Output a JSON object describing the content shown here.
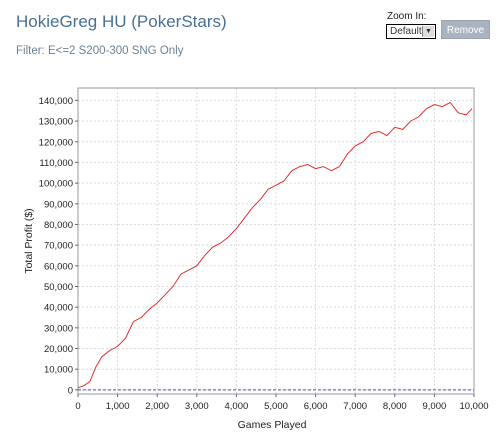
{
  "header": {
    "title": "HokieGreg HU (PokerStars)",
    "filter": "Filter: E<=2 S200-300 SNG Only"
  },
  "zoom": {
    "label": "Zoom In:",
    "selected": "Default",
    "remove_label": "Remove"
  },
  "colors": {
    "series": "#e03030",
    "zero_line": "#4a4ad0",
    "grid": "#d9d9d9"
  },
  "chart_data": {
    "type": "line",
    "title": "",
    "xlabel": "Games Played",
    "ylabel": "Total Profit ($)",
    "xlim": [
      0,
      10000
    ],
    "ylim": [
      -2000,
      146000
    ],
    "xticks": [
      0,
      1000,
      2000,
      3000,
      4000,
      5000,
      6000,
      7000,
      8000,
      9000,
      10000
    ],
    "xtick_labels": [
      "0",
      "1,000",
      "2,000",
      "3,000",
      "4,000",
      "5,000",
      "6,000",
      "7,000",
      "8,000",
      "9,000",
      "10,000"
    ],
    "yticks": [
      0,
      10000,
      20000,
      30000,
      40000,
      50000,
      60000,
      70000,
      80000,
      90000,
      100000,
      110000,
      120000,
      130000,
      140000
    ],
    "ytick_labels": [
      "0",
      "10,000",
      "20,000",
      "30,000",
      "40,000",
      "50,000",
      "60,000",
      "70,000",
      "80,000",
      "90,000",
      "100,000",
      "110,000",
      "120,000",
      "130,000",
      "140,000"
    ],
    "grid": true,
    "reference_line_y": 0,
    "series": [
      {
        "x": [
          0,
          150,
          300,
          450,
          600,
          800,
          1000,
          1200,
          1400,
          1600,
          1800,
          2000,
          2200,
          2400,
          2600,
          2800,
          3000,
          3200,
          3400,
          3600,
          3800,
          4000,
          4200,
          4400,
          4600,
          4800,
          5000,
          5200,
          5400,
          5600,
          5800,
          6000,
          6200,
          6400,
          6600,
          6800,
          7000,
          7200,
          7400,
          7600,
          7800,
          8000,
          8200,
          8400,
          8600,
          8800,
          9000,
          9200,
          9400,
          9600,
          9800,
          9950
        ],
        "values": [
          1000,
          2000,
          4000,
          11000,
          16000,
          19000,
          21000,
          25000,
          33000,
          35000,
          39000,
          42000,
          46000,
          50000,
          56000,
          58000,
          60000,
          65000,
          69000,
          71000,
          74000,
          78000,
          83000,
          88000,
          92000,
          97000,
          99000,
          101000,
          106000,
          108000,
          109000,
          107000,
          108000,
          106000,
          108000,
          114000,
          118000,
          120000,
          124000,
          125000,
          123000,
          127000,
          126000,
          130000,
          132000,
          136000,
          138000,
          137000,
          139000,
          134000,
          133000,
          136000
        ]
      }
    ]
  }
}
